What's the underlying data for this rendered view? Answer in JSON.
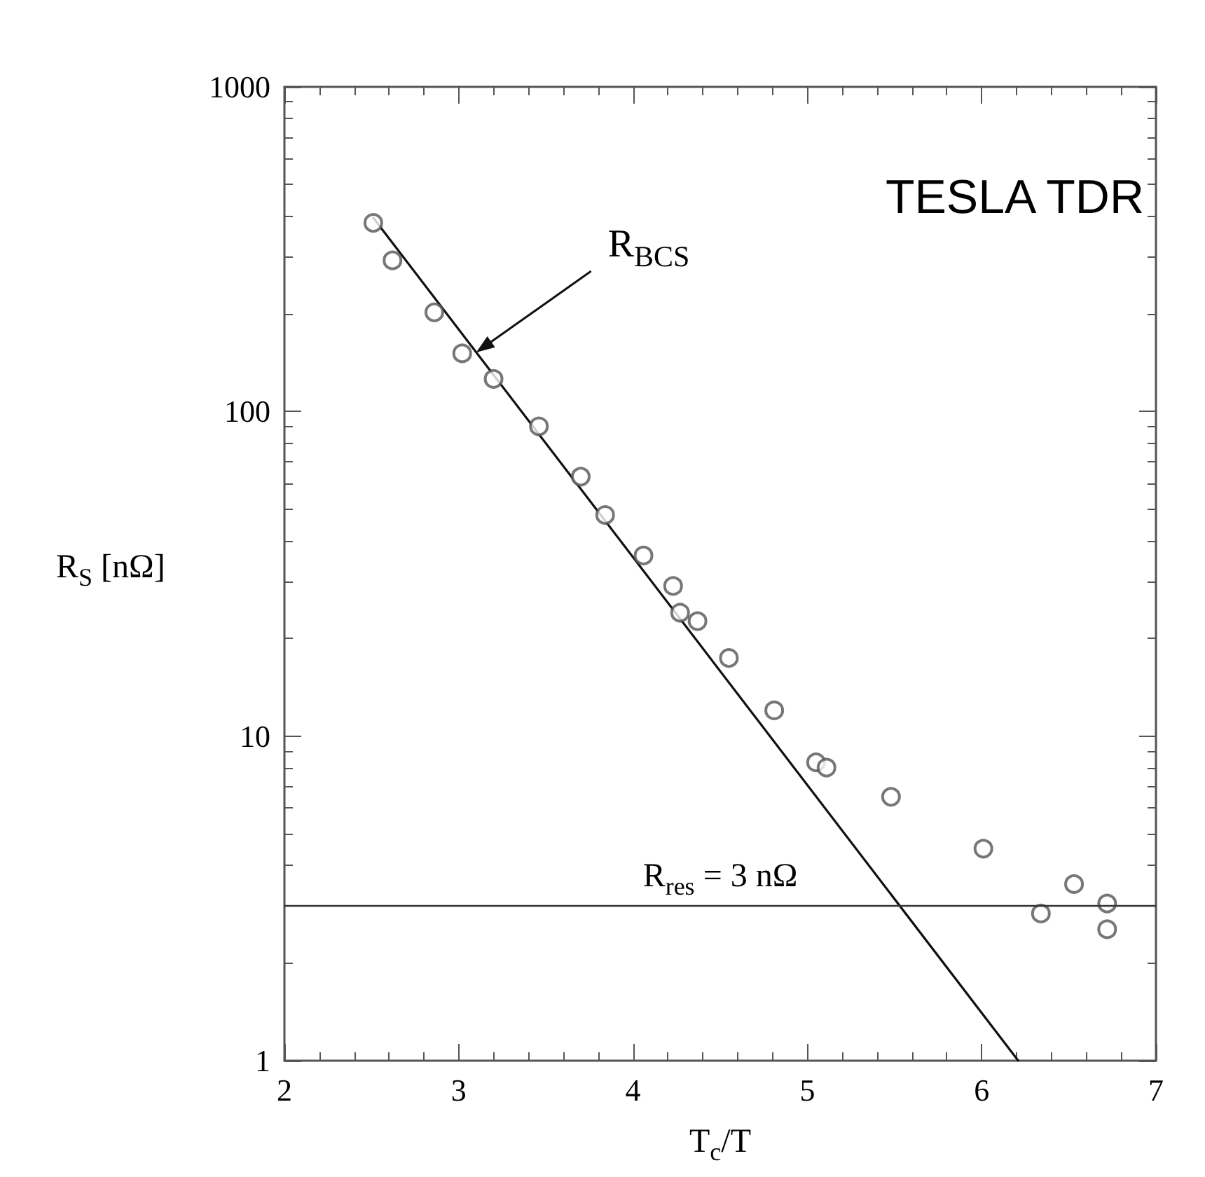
{
  "chart_data": {
    "type": "scatter",
    "xlabel": "T$_{c}$/T",
    "ylabel": "R$_{S}$ [nΩ]",
    "log": "y",
    "grid": false,
    "legend": false,
    "xlim": [
      2,
      7
    ],
    "xticks": [
      2,
      3,
      4,
      5,
      6,
      7
    ],
    "ylim": [
      1,
      1000
    ],
    "yticks": [
      1,
      10,
      100,
      1000
    ],
    "series": [
      {
        "marker": "circle",
        "color": "#555555",
        "x": [
          2.51,
          2.62,
          2.86,
          3.02,
          3.2,
          3.46,
          3.7,
          3.84,
          4.06,
          4.23,
          4.27,
          4.37,
          4.55,
          4.81,
          5.05,
          5.11,
          5.48,
          6.01,
          6.34,
          6.53,
          6.72,
          6.72
        ],
        "values": [
          381,
          292,
          202,
          151,
          126,
          90,
          63,
          48,
          36,
          29,
          24,
          22.6,
          17.4,
          12,
          8.3,
          8,
          6.5,
          4.5,
          2.84,
          3.5,
          3.05,
          2.54
        ]
      },
      {
        "type": "line",
        "marker": "none",
        "line_style": "solid",
        "color": "#111111",
        "x": [
          2.51,
          6.21
        ],
        "values": [
          395,
          1
        ]
      }
    ],
    "ref_lines": [
      {
        "axis": "y",
        "value": 3,
        "label": "R$_{res}$ = 3 nΩ",
        "color": "#333333"
      }
    ],
    "annotations": [
      "TESLA TDR",
      {
        "text": "R$_{BCS}$",
        "x": 3.1,
        "y": 152
      }
    ]
  }
}
